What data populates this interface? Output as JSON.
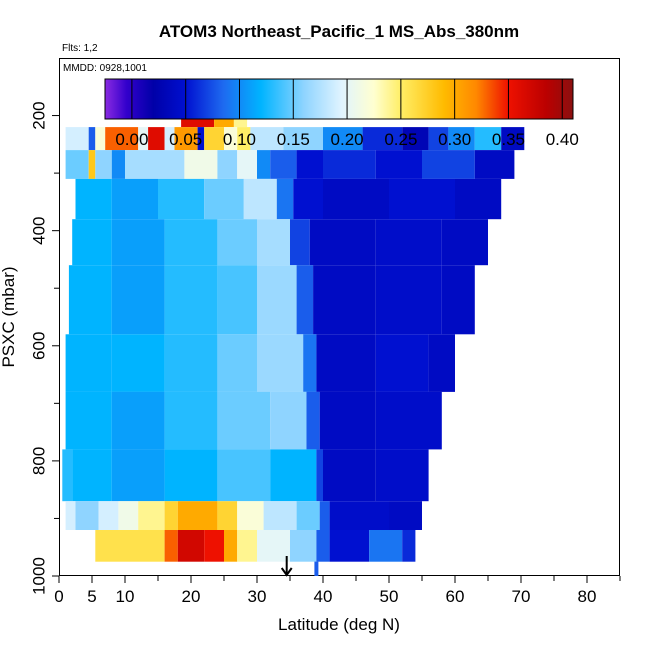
{
  "chart_data": {
    "type": "heatmap",
    "title": "ATOM3 Northeast_Pacific_1 MS_Abs_380nm",
    "flights_label": "Flts: 1,2",
    "date_label": "MMDD: 0928,1001",
    "xlabel": "Latitude (deg N)",
    "ylabel": "PSXC (mbar)",
    "xlim": [
      0,
      85
    ],
    "ylim": [
      1000,
      100
    ],
    "x_ticks": [
      0,
      5,
      10,
      20,
      30,
      40,
      50,
      60,
      70,
      80
    ],
    "x_minor_ticks": [
      15,
      25,
      35,
      45,
      55,
      65,
      75,
      85
    ],
    "y_ticks": [
      200,
      400,
      600,
      800,
      1000
    ],
    "y_minor_ticks": [
      300,
      500,
      700,
      900
    ],
    "colorbar": {
      "range": [
        -0.025,
        0.41
      ],
      "ticks": [
        0.0,
        0.05,
        0.1,
        0.15,
        0.2,
        0.25,
        0.3,
        0.35,
        0.4
      ],
      "tick_labels": [
        "0.00",
        "0.05",
        "0.10",
        "0.15",
        "0.20",
        "0.25",
        "0.30",
        "0.35",
        "0.40"
      ],
      "stops": [
        {
          "v": -0.025,
          "c": "#8a2be2"
        },
        {
          "v": -0.005,
          "c": "#3300cc"
        },
        {
          "v": 0.02,
          "c": "#0000a8"
        },
        {
          "v": 0.05,
          "c": "#0010d0"
        },
        {
          "v": 0.085,
          "c": "#1e6af0"
        },
        {
          "v": 0.12,
          "c": "#00b4ff"
        },
        {
          "v": 0.16,
          "c": "#8fd4ff"
        },
        {
          "v": 0.195,
          "c": "#e0f4ff"
        },
        {
          "v": 0.225,
          "c": "#ffffd0"
        },
        {
          "v": 0.25,
          "c": "#ffee66"
        },
        {
          "v": 0.29,
          "c": "#ffbb00"
        },
        {
          "v": 0.32,
          "c": "#ff8800"
        },
        {
          "v": 0.35,
          "c": "#ee1100"
        },
        {
          "v": 0.385,
          "c": "#bb0000"
        },
        {
          "v": 0.41,
          "c": "#8b1010"
        }
      ]
    },
    "arrow_marker_lat": 34.5,
    "rows": [
      {
        "p": [
          195,
          220
        ],
        "segs": [
          {
            "x0": 18.5,
            "x1": 23.5,
            "v": 0.36
          },
          {
            "x0": 23.5,
            "x1": 26.5,
            "v": 0.3
          },
          {
            "x0": 26.5,
            "x1": 28.5,
            "v": 0.24
          }
        ]
      },
      {
        "p": [
          220,
          260
        ],
        "segs": [
          {
            "x0": 1,
            "x1": 4.5,
            "v": 0.19
          },
          {
            "x0": 4.5,
            "x1": 5.5,
            "v": 0.08
          },
          {
            "x0": 5.5,
            "x1": 7,
            "v": 0.22
          },
          {
            "x0": 7,
            "x1": 12,
            "v": 0.33
          },
          {
            "x0": 12,
            "x1": 13.5,
            "v": 0.2
          },
          {
            "x0": 13.5,
            "x1": 16,
            "v": 0.36
          },
          {
            "x0": 16,
            "x1": 17.5,
            "v": 0.19
          },
          {
            "x0": 17.5,
            "x1": 21,
            "v": 0.31
          },
          {
            "x0": 21,
            "x1": 22,
            "v": 0.05
          },
          {
            "x0": 22,
            "x1": 25,
            "v": 0.27
          },
          {
            "x0": 25,
            "x1": 27,
            "v": 0.22
          },
          {
            "x0": 27,
            "x1": 29,
            "v": 0.25
          },
          {
            "x0": 29,
            "x1": 34,
            "v": 0.18
          },
          {
            "x0": 34,
            "x1": 40,
            "v": 0.16
          },
          {
            "x0": 40,
            "x1": 46,
            "v": 0.1
          },
          {
            "x0": 46,
            "x1": 52,
            "v": 0.06
          },
          {
            "x0": 52,
            "x1": 56,
            "v": 0.03
          },
          {
            "x0": 56,
            "x1": 59,
            "v": 0.07
          },
          {
            "x0": 59,
            "x1": 63,
            "v": 0.1
          },
          {
            "x0": 63,
            "x1": 67,
            "v": 0.13
          },
          {
            "x0": 67,
            "x1": 70.5,
            "v": 0.04
          }
        ]
      },
      {
        "p": [
          260,
          310
        ],
        "segs": [
          {
            "x0": 1,
            "x1": 4.5,
            "v": 0.15
          },
          {
            "x0": 4.5,
            "x1": 5.5,
            "v": 0.28
          },
          {
            "x0": 5.5,
            "x1": 8,
            "v": 0.16
          },
          {
            "x0": 8,
            "x1": 10,
            "v": 0.1
          },
          {
            "x0": 10,
            "x1": 19,
            "v": 0.17
          },
          {
            "x0": 19,
            "x1": 24,
            "v": 0.21
          },
          {
            "x0": 24,
            "x1": 27,
            "v": 0.16
          },
          {
            "x0": 27,
            "x1": 30,
            "v": 0.2
          },
          {
            "x0": 30,
            "x1": 32,
            "v": 0.1
          },
          {
            "x0": 32,
            "x1": 36,
            "v": 0.08
          },
          {
            "x0": 36,
            "x1": 40,
            "v": 0.05
          },
          {
            "x0": 40,
            "x1": 48,
            "v": 0.06
          },
          {
            "x0": 48,
            "x1": 55,
            "v": 0.05
          },
          {
            "x0": 55,
            "x1": 63,
            "v": 0.07
          },
          {
            "x0": 63,
            "x1": 69,
            "v": 0.04
          }
        ]
      },
      {
        "p": [
          310,
          380
        ],
        "segs": [
          {
            "x0": 2.5,
            "x1": 8,
            "v": 0.12
          },
          {
            "x0": 8,
            "x1": 15,
            "v": 0.11
          },
          {
            "x0": 15,
            "x1": 22,
            "v": 0.13
          },
          {
            "x0": 22,
            "x1": 28,
            "v": 0.15
          },
          {
            "x0": 28,
            "x1": 33,
            "v": 0.18
          },
          {
            "x0": 33,
            "x1": 35.5,
            "v": 0.09
          },
          {
            "x0": 35.5,
            "x1": 40,
            "v": 0.05
          },
          {
            "x0": 40,
            "x1": 50,
            "v": 0.04
          },
          {
            "x0": 50,
            "x1": 60,
            "v": 0.05
          },
          {
            "x0": 60,
            "x1": 67,
            "v": 0.04
          }
        ]
      },
      {
        "p": [
          380,
          460
        ],
        "segs": [
          {
            "x0": 2,
            "x1": 8,
            "v": 0.12
          },
          {
            "x0": 8,
            "x1": 16,
            "v": 0.11
          },
          {
            "x0": 16,
            "x1": 24,
            "v": 0.13
          },
          {
            "x0": 24,
            "x1": 30,
            "v": 0.15
          },
          {
            "x0": 30,
            "x1": 35,
            "v": 0.17
          },
          {
            "x0": 35,
            "x1": 38,
            "v": 0.07
          },
          {
            "x0": 38,
            "x1": 48,
            "v": 0.04
          },
          {
            "x0": 48,
            "x1": 58,
            "v": 0.045
          },
          {
            "x0": 58,
            "x1": 65,
            "v": 0.04
          }
        ]
      },
      {
        "p": [
          460,
          580
        ],
        "segs": [
          {
            "x0": 1.5,
            "x1": 8,
            "v": 0.12
          },
          {
            "x0": 8,
            "x1": 16,
            "v": 0.11
          },
          {
            "x0": 16,
            "x1": 24,
            "v": 0.13
          },
          {
            "x0": 24,
            "x1": 30,
            "v": 0.14
          },
          {
            "x0": 30,
            "x1": 36,
            "v": 0.165
          },
          {
            "x0": 36,
            "x1": 38.5,
            "v": 0.08
          },
          {
            "x0": 38.5,
            "x1": 48,
            "v": 0.04
          },
          {
            "x0": 48,
            "x1": 58,
            "v": 0.045
          },
          {
            "x0": 58,
            "x1": 63,
            "v": 0.04
          }
        ]
      },
      {
        "p": [
          580,
          680
        ],
        "segs": [
          {
            "x0": 1,
            "x1": 8,
            "v": 0.12
          },
          {
            "x0": 8,
            "x1": 16,
            "v": 0.12
          },
          {
            "x0": 16,
            "x1": 24,
            "v": 0.13
          },
          {
            "x0": 24,
            "x1": 30,
            "v": 0.15
          },
          {
            "x0": 30,
            "x1": 37,
            "v": 0.165
          },
          {
            "x0": 37,
            "x1": 39,
            "v": 0.09
          },
          {
            "x0": 39,
            "x1": 48,
            "v": 0.04
          },
          {
            "x0": 48,
            "x1": 56,
            "v": 0.05
          },
          {
            "x0": 56,
            "x1": 60,
            "v": 0.04
          }
        ]
      },
      {
        "p": [
          680,
          780
        ],
        "segs": [
          {
            "x0": 1,
            "x1": 8,
            "v": 0.12
          },
          {
            "x0": 8,
            "x1": 16,
            "v": 0.11
          },
          {
            "x0": 16,
            "x1": 24,
            "v": 0.13
          },
          {
            "x0": 24,
            "x1": 32,
            "v": 0.15
          },
          {
            "x0": 32,
            "x1": 37.5,
            "v": 0.16
          },
          {
            "x0": 37.5,
            "x1": 39.5,
            "v": 0.08
          },
          {
            "x0": 39.5,
            "x1": 48,
            "v": 0.04
          },
          {
            "x0": 48,
            "x1": 58,
            "v": 0.045
          }
        ]
      },
      {
        "p": [
          780,
          870
        ],
        "segs": [
          {
            "x0": 0.5,
            "x1": 2,
            "v": 0.13
          },
          {
            "x0": 2,
            "x1": 8,
            "v": 0.12
          },
          {
            "x0": 8,
            "x1": 16,
            "v": 0.11
          },
          {
            "x0": 16,
            "x1": 24,
            "v": 0.12
          },
          {
            "x0": 24,
            "x1": 32,
            "v": 0.14
          },
          {
            "x0": 32,
            "x1": 39,
            "v": 0.12
          },
          {
            "x0": 39,
            "x1": 40,
            "v": 0.07
          },
          {
            "x0": 40,
            "x1": 48,
            "v": 0.04
          },
          {
            "x0": 48,
            "x1": 56,
            "v": 0.045
          }
        ]
      },
      {
        "p": [
          870,
          920
        ],
        "segs": [
          {
            "x0": 1,
            "x1": 2.5,
            "v": 0.19
          },
          {
            "x0": 2.5,
            "x1": 6,
            "v": 0.16
          },
          {
            "x0": 6,
            "x1": 9,
            "v": 0.19
          },
          {
            "x0": 9,
            "x1": 12,
            "v": 0.21
          },
          {
            "x0": 12,
            "x1": 16,
            "v": 0.24
          },
          {
            "x0": 16,
            "x1": 18,
            "v": 0.27
          },
          {
            "x0": 18,
            "x1": 24,
            "v": 0.3
          },
          {
            "x0": 24,
            "x1": 27,
            "v": 0.27
          },
          {
            "x0": 27,
            "x1": 31,
            "v": 0.22
          },
          {
            "x0": 31,
            "x1": 36,
            "v": 0.18
          },
          {
            "x0": 36,
            "x1": 39.5,
            "v": 0.15
          },
          {
            "x0": 39.5,
            "x1": 41,
            "v": 0.08
          },
          {
            "x0": 41,
            "x1": 50,
            "v": 0.045
          },
          {
            "x0": 50,
            "x1": 55,
            "v": 0.04
          }
        ]
      },
      {
        "p": [
          920,
          975
        ],
        "segs": [
          {
            "x0": 5.5,
            "x1": 16,
            "v": 0.26
          },
          {
            "x0": 16,
            "x1": 18,
            "v": 0.33
          },
          {
            "x0": 18,
            "x1": 22,
            "v": 0.37
          },
          {
            "x0": 22,
            "x1": 25,
            "v": 0.35
          },
          {
            "x0": 25,
            "x1": 27,
            "v": 0.3
          },
          {
            "x0": 27,
            "x1": 30,
            "v": 0.24
          },
          {
            "x0": 30,
            "x1": 35,
            "v": 0.2
          },
          {
            "x0": 35,
            "x1": 39,
            "v": 0.16
          },
          {
            "x0": 39,
            "x1": 41,
            "v": 0.08
          },
          {
            "x0": 41,
            "x1": 47,
            "v": 0.05
          },
          {
            "x0": 47,
            "x1": 52,
            "v": 0.09
          },
          {
            "x0": 52,
            "x1": 54,
            "v": 0.06
          }
        ]
      },
      {
        "p": [
          975,
          1000
        ],
        "segs": [
          {
            "x0": 38.7,
            "x1": 39.3,
            "v": 0.08
          }
        ]
      }
    ]
  }
}
